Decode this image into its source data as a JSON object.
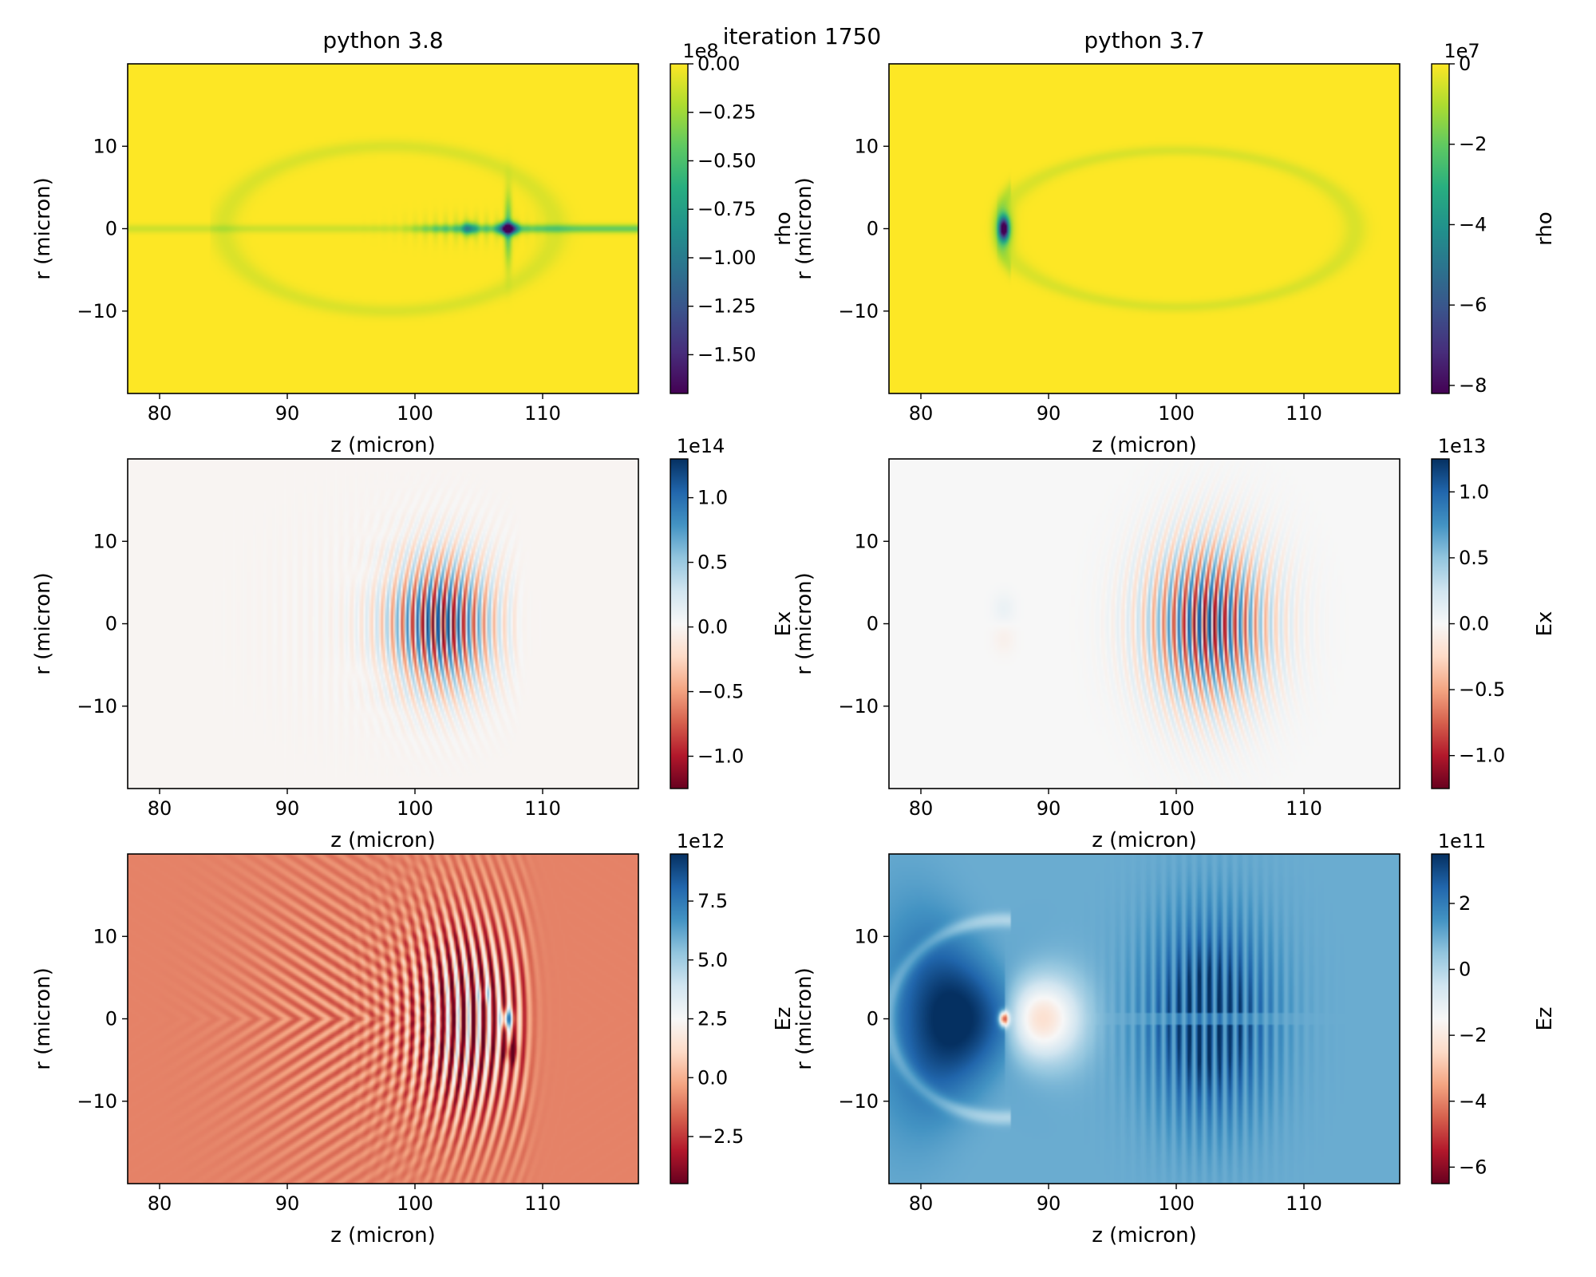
{
  "figure": {
    "suptitle": "iteration 1750"
  },
  "columns": [
    {
      "title": "python 3.8"
    },
    {
      "title": "python 3.7"
    }
  ],
  "chart_data": [
    {
      "type": "heatmap",
      "field": "rho",
      "column": "python 3.8",
      "cmap": "viridis",
      "xlabel": "z (micron)",
      "ylabel": "r (micron)",
      "xlim": [
        77.5,
        117.5
      ],
      "ylim": [
        -20,
        20
      ],
      "xticks": [
        80,
        90,
        100,
        110
      ],
      "yticks": [
        -10,
        0,
        10
      ],
      "colorbar": {
        "label": "rho",
        "offset": "1e8",
        "vmin": -1.7,
        "vmax": 0.0,
        "ticks": [
          0.0,
          -0.25,
          -0.5,
          -0.75,
          -1.0,
          -1.25,
          -1.5
        ],
        "tick_labels": [
          "0.00",
          "−0.25",
          "−0.50",
          "−0.75",
          "−1.00",
          "−1.25",
          "−1.50"
        ]
      },
      "features": {
        "background": 0.0,
        "peak_z": 107.3,
        "peak_r": 0,
        "peak_value": -1.7,
        "axis_streak": true
      }
    },
    {
      "type": "heatmap",
      "field": "rho",
      "column": "python 3.7",
      "cmap": "viridis",
      "xlabel": "z (micron)",
      "ylabel": "r (micron)",
      "xlim": [
        77.5,
        117.5
      ],
      "ylim": [
        -20,
        20
      ],
      "xticks": [
        80,
        90,
        100,
        110
      ],
      "yticks": [
        -10,
        0,
        10
      ],
      "colorbar": {
        "label": "rho",
        "offset": "1e7",
        "vmin": -8.2,
        "vmax": 0.0,
        "ticks": [
          0,
          -2,
          -4,
          -6,
          -8
        ],
        "tick_labels": [
          "0",
          "−2",
          "−4",
          "−6",
          "−8"
        ]
      },
      "features": {
        "background": 0.0,
        "peak_z": 86.5,
        "peak_r": 0,
        "peak_value": -8.2
      }
    },
    {
      "type": "heatmap",
      "field": "Ex",
      "column": "python 3.8",
      "cmap": "RdBu",
      "xlabel": "z (micron)",
      "ylabel": "r (micron)",
      "xlim": [
        77.5,
        117.5
      ],
      "ylim": [
        -20,
        20
      ],
      "xticks": [
        80,
        90,
        100,
        110
      ],
      "yticks": [
        -10,
        0,
        10
      ],
      "colorbar": {
        "label": "Ex",
        "offset": "1e14",
        "vmin": -1.25,
        "vmax": 1.3,
        "ticks": [
          1.0,
          0.5,
          0.0,
          -0.5,
          -1.0
        ],
        "tick_labels": [
          "1.0",
          "0.5",
          "0.0",
          "−0.5",
          "−1.0"
        ]
      },
      "features": {
        "pulse_center_z": 102,
        "pulse_extent_z": [
          95,
          108
        ],
        "pulse_half_width_r": 8,
        "amplitude": 1.3
      }
    },
    {
      "type": "heatmap",
      "field": "Ex",
      "column": "python 3.7",
      "cmap": "RdBu",
      "xlabel": "z (micron)",
      "ylabel": "r (micron)",
      "xlim": [
        77.5,
        117.5
      ],
      "ylim": [
        -20,
        20
      ],
      "xticks": [
        80,
        90,
        100,
        110
      ],
      "yticks": [
        -10,
        0,
        10
      ],
      "colorbar": {
        "label": "Ex",
        "offset": "1e13",
        "vmin": -1.25,
        "vmax": 1.25,
        "ticks": [
          1.0,
          0.5,
          0.0,
          -0.5,
          -1.0
        ],
        "tick_labels": [
          "1.0",
          "0.5",
          "0.0",
          "−0.5",
          "−1.0"
        ]
      },
      "features": {
        "pulse_center_z": 102.5,
        "pulse_extent_z": [
          94,
          110
        ],
        "pulse_half_width_r": 9,
        "amplitude": 1.25
      }
    },
    {
      "type": "heatmap",
      "field": "Ez",
      "column": "python 3.8",
      "cmap": "RdBu",
      "xlabel": "z (micron)",
      "ylabel": "r (micron)",
      "xlim": [
        77.5,
        117.5
      ],
      "ylim": [
        -20,
        20
      ],
      "xticks": [
        80,
        90,
        100,
        110
      ],
      "yticks": [
        -10,
        0,
        10
      ],
      "colorbar": {
        "label": "Ez",
        "offset": "1e12",
        "vmin": -4.5,
        "vmax": 9.5,
        "ticks": [
          7.5,
          5.0,
          2.5,
          0.0,
          -2.5
        ],
        "tick_labels": [
          "7.5",
          "5.0",
          "2.5",
          "0.0",
          "−2.5"
        ]
      },
      "features": {
        "background": -1.0,
        "front_z": 108,
        "extent_z": [
          92,
          109
        ]
      }
    },
    {
      "type": "heatmap",
      "field": "Ez",
      "column": "python 3.7",
      "cmap": "RdBu",
      "xlabel": "z (micron)",
      "ylabel": "r (micron)",
      "xlim": [
        77.5,
        117.5
      ],
      "ylim": [
        -20,
        20
      ],
      "xticks": [
        80,
        90,
        100,
        110
      ],
      "yticks": [
        -10,
        0,
        10
      ],
      "colorbar": {
        "label": "Ez",
        "offset": "1e11",
        "vmin": -6.5,
        "vmax": 3.5,
        "ticks": [
          2,
          0,
          -2,
          -4,
          -6
        ],
        "tick_labels": [
          "2",
          "0",
          "−2",
          "−4",
          "−6"
        ]
      },
      "features": {
        "background": 1.0,
        "wake_center_z": 86.5,
        "pulse_center_z": 102.5,
        "pulse_amplitude": 3.5
      }
    }
  ]
}
